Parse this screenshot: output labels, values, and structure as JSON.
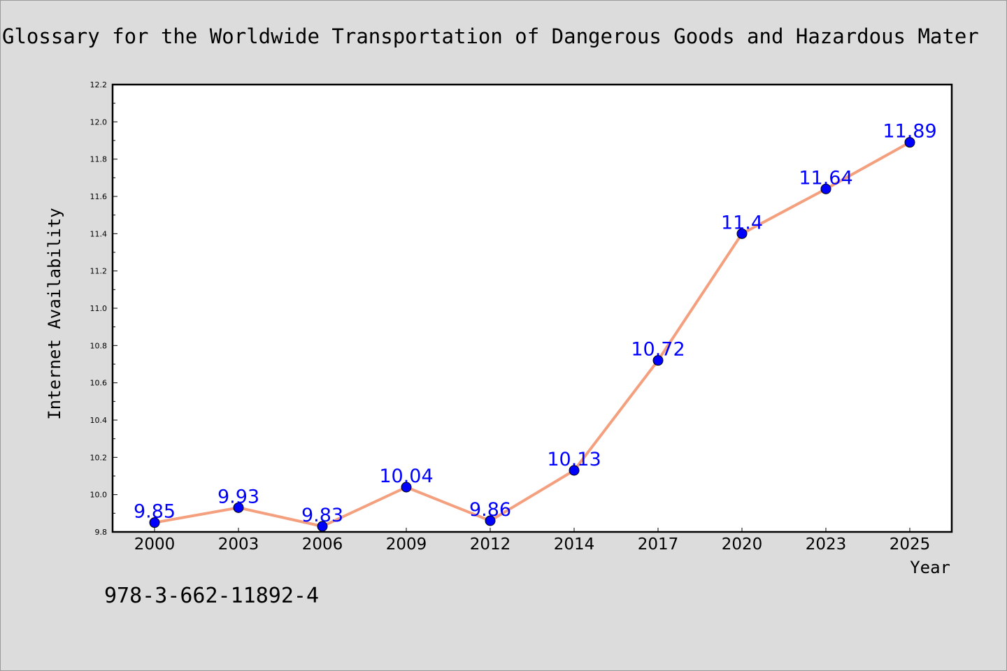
{
  "chart_data": {
    "type": "line",
    "title": "Glossary for the Worldwide Transportation of Dangerous Goods and Hazardous Mater",
    "xlabel": "Year",
    "ylabel": "Internet Availability",
    "categories": [
      "2000",
      "2003",
      "2006",
      "2009",
      "2012",
      "2014",
      "2017",
      "2020",
      "2023",
      "2025"
    ],
    "series": [
      {
        "values": [
          9.85,
          9.93,
          9.83,
          10.04,
          9.86,
          10.13,
          10.72,
          11.4,
          11.64,
          11.89
        ],
        "labels": [
          "9.85",
          "9.93",
          "9.83",
          "10.04",
          "9.86",
          "10.13",
          "10.72",
          "11.4",
          "11.64",
          "11.89"
        ],
        "line_color": "#f4a07e",
        "marker_color": "#0000ff",
        "label_color": "#0000ff"
      }
    ],
    "ylim": [
      9.8,
      12.2
    ],
    "yticks": [
      "9.8",
      "10.0",
      "10.2",
      "10.4",
      "10.6",
      "10.8",
      "11.0",
      "11.2",
      "11.4",
      "11.6",
      "11.8",
      "12.0",
      "12.2"
    ],
    "grid": false,
    "legend": "none"
  },
  "footer": {
    "isbn": "978-3-662-11892-4"
  }
}
